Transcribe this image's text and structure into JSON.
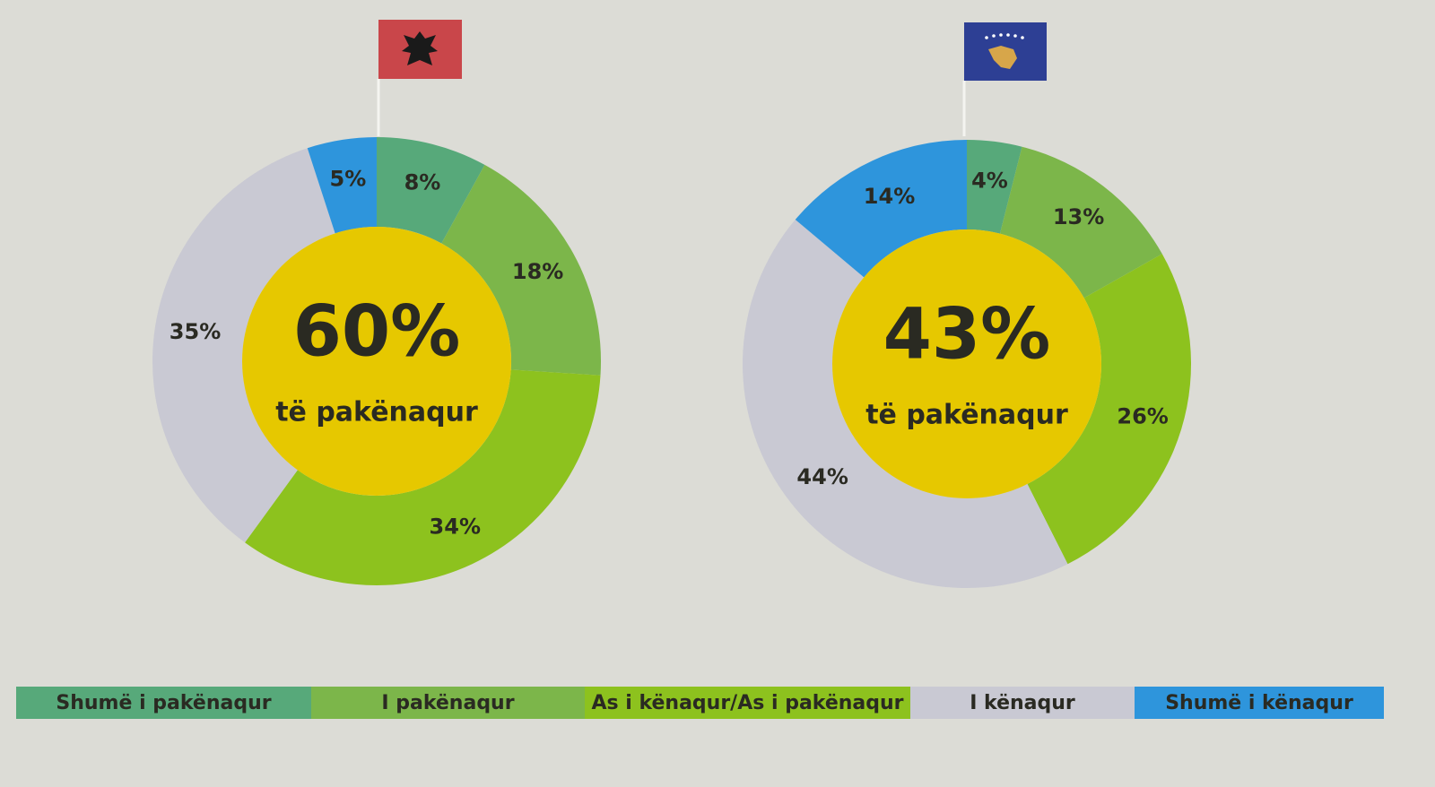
{
  "legend": {
    "labels": [
      "Shumë i pakënaqur",
      "I pakënaqur",
      "As i kënaqur/As i pakënaqur",
      "I kënaqur",
      "Shumë i kënaqur"
    ],
    "colors": [
      "#57a97a",
      "#7cb64a",
      "#8dc21e",
      "#c9c9d3",
      "#2e95dc"
    ]
  },
  "chart_data": [
    {
      "type": "pie",
      "values": [
        8,
        18,
        34,
        35,
        5
      ],
      "value_labels": [
        "8%",
        "18%",
        "34%",
        "35%",
        "5%"
      ],
      "center_value": "60%",
      "center_text": "të pakënaqur"
    },
    {
      "type": "pie",
      "values": [
        4,
        13,
        26,
        44,
        14
      ],
      "value_labels": [
        "4%",
        "13%",
        "26%",
        "44%",
        "14%"
      ],
      "center_value": "43%",
      "center_text": "të pakënaqur"
    }
  ]
}
